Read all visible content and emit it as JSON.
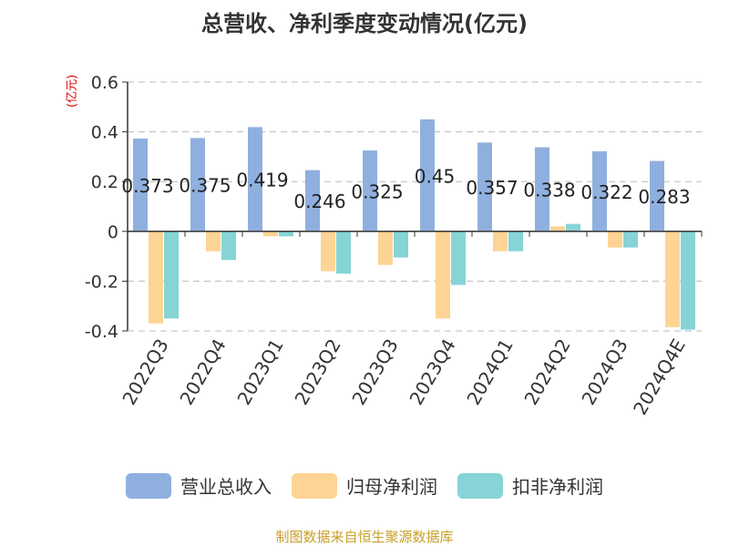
{
  "title": "总营收、净利季度变动情况(亿元)",
  "source": "制图数据来自恒生聚源数据库",
  "colors": {
    "revenue": "#8fb0de",
    "net_profit": "#fdd494",
    "deducted_profit": "#86d4d6",
    "unit": "#e00000"
  },
  "chart_data": {
    "type": "bar",
    "title": "总营收、净利季度变动情况(亿元)",
    "ylabel": "(亿元)",
    "xlabel": "",
    "ylim": [
      -0.4,
      0.6
    ],
    "yticks": [
      -0.4,
      -0.2,
      0,
      0.2,
      0.4,
      0.6
    ],
    "ytick_labels": [
      "-0.4",
      "-0.2",
      "0",
      "0.2",
      "0.4",
      "0.6"
    ],
    "grid": true,
    "legend_position": "bottom",
    "categories": [
      "2022Q3",
      "2022Q4",
      "2023Q1",
      "2023Q2",
      "2023Q3",
      "2023Q4",
      "2024Q1",
      "2024Q2",
      "2024Q3",
      "2024Q4E"
    ],
    "series": [
      {
        "name": "营业总收入",
        "color": "#8fb0de",
        "values": [
          0.373,
          0.375,
          0.419,
          0.246,
          0.325,
          0.45,
          0.357,
          0.338,
          0.322,
          0.283
        ],
        "labels": [
          "0.373",
          "0.375",
          "0.419",
          "0.246",
          "0.325",
          "0.45",
          "0.357",
          "0.338",
          "0.322",
          "0.283"
        ]
      },
      {
        "name": "归母净利润",
        "color": "#fdd494",
        "values": [
          -0.37,
          -0.08,
          -0.02,
          -0.16,
          -0.135,
          -0.35,
          -0.08,
          0.02,
          -0.065,
          -0.385
        ]
      },
      {
        "name": "扣非净利润",
        "color": "#86d4d6",
        "values": [
          -0.35,
          -0.115,
          -0.02,
          -0.17,
          -0.105,
          -0.215,
          -0.08,
          0.03,
          -0.065,
          -0.395
        ]
      }
    ]
  }
}
